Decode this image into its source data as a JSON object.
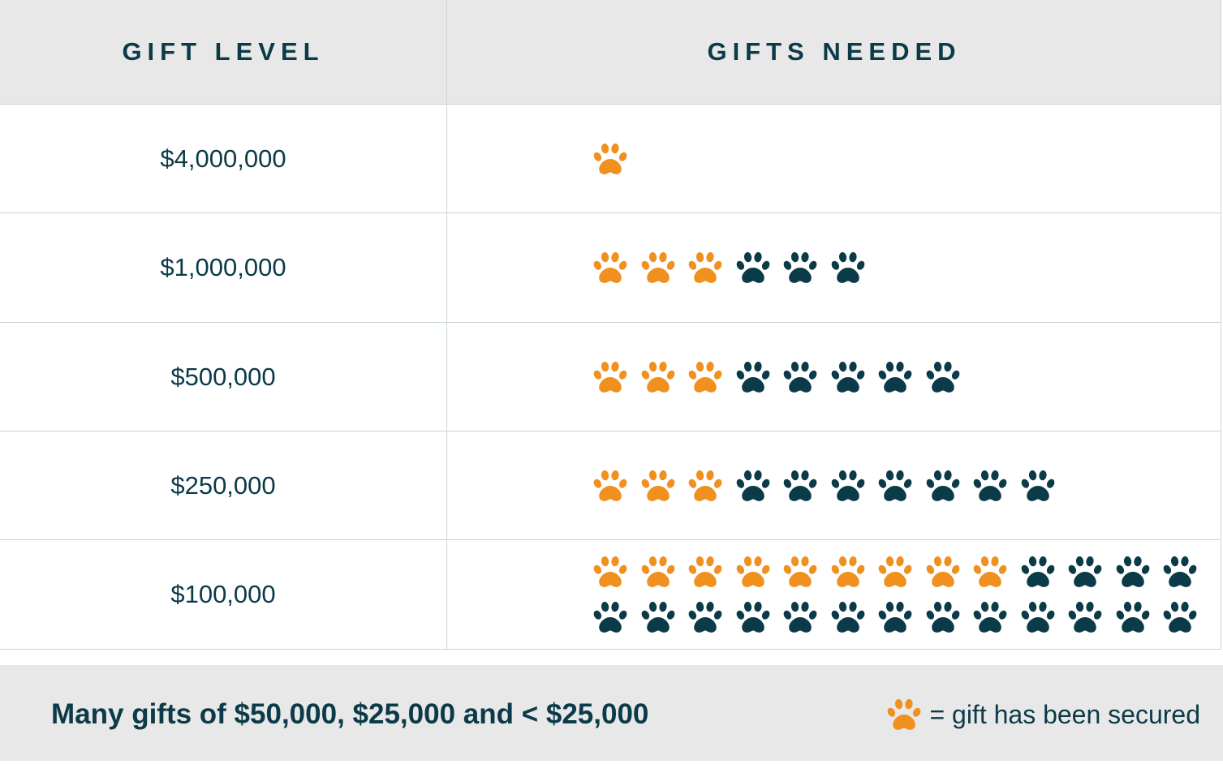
{
  "header": {
    "gift_level": "GIFT LEVEL",
    "gifts_needed": "GIFTS NEEDED"
  },
  "colors": {
    "secured": "#f0901e",
    "needed": "#0b3a48",
    "header_bg": "#e8e8e8",
    "text": "#0b3a48"
  },
  "icons": {
    "secured": "paw-icon-orange",
    "needed": "paw-icon-navy"
  },
  "chart_data": {
    "type": "table",
    "columns": [
      "GIFT LEVEL",
      "GIFTS NEEDED"
    ],
    "rows": [
      {
        "level": "$4,000,000",
        "gifts_needed": 1,
        "secured": 1
      },
      {
        "level": "$1,000,000",
        "gifts_needed": 6,
        "secured": 3
      },
      {
        "level": "$500,000",
        "gifts_needed": 8,
        "secured": 3
      },
      {
        "level": "$250,000",
        "gifts_needed": 10,
        "secured": 3
      },
      {
        "level": "$100,000",
        "gifts_needed": 26,
        "secured": 9
      }
    ]
  },
  "footer": {
    "note": "Many gifts of $50,000, $25,000 and < $25,000",
    "legend_text": "= gift has been secured"
  }
}
